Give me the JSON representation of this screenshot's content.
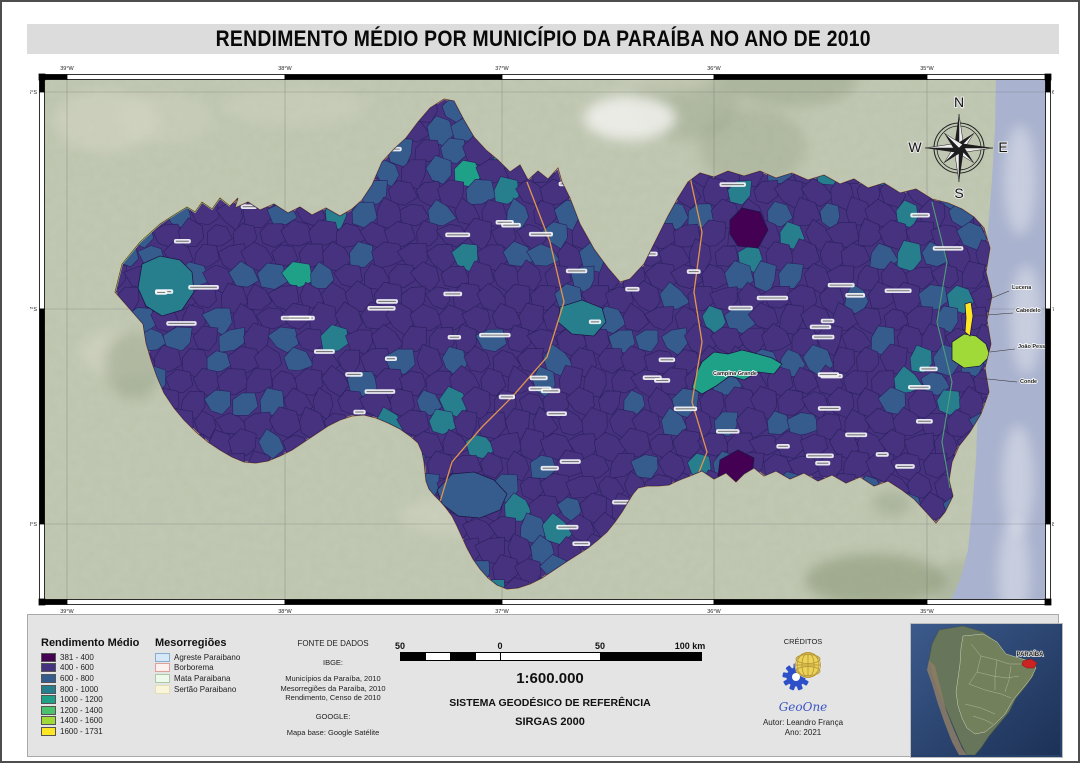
{
  "title": "RENDIMENTO MÉDIO POR MUNICÍPIO DA PARAÍBA NO ANO DE 2010",
  "map": {
    "lon_labels": [
      "39°W",
      "38°W",
      "37°W",
      "36°W",
      "35°W"
    ],
    "lat_labels": [
      "6°S",
      "7°S",
      "8°S"
    ],
    "compass_letters": [
      "N",
      "E",
      "S",
      "W"
    ],
    "place_labels": [
      {
        "id": "lucena",
        "text": "Lucena"
      },
      {
        "id": "cabedelo",
        "text": "Cabedelo"
      },
      {
        "id": "joao-pessoa",
        "text": "João Pessoa"
      },
      {
        "id": "conde",
        "text": "Conde"
      },
      {
        "id": "campina-grande",
        "text": "Campina Grande"
      }
    ]
  },
  "legend": {
    "title": "Rendimento Médio",
    "classes": [
      {
        "label": "381 - 400",
        "color": "#440154"
      },
      {
        "label": "400 - 600",
        "color": "#46327e"
      },
      {
        "label": "600 - 800",
        "color": "#365c8d"
      },
      {
        "label": "800 - 1000",
        "color": "#277f8e"
      },
      {
        "label": "1000 - 1200",
        "color": "#1fa187"
      },
      {
        "label": "1200 - 1400",
        "color": "#4ac16d"
      },
      {
        "label": "1400 - 1600",
        "color": "#a0da39"
      },
      {
        "label": "1600 - 1731",
        "color": "#fde725"
      }
    ],
    "mesoregions_title": "Mesorregiões",
    "mesoregions": [
      {
        "label": "Agreste Paraibano",
        "fill": "#d6e8f7",
        "border": "#86aed2"
      },
      {
        "label": "Borborema",
        "fill": "#fdf0ef",
        "border": "#e0a09a"
      },
      {
        "label": "Mata Paraibana",
        "fill": "#eff8ec",
        "border": "#a8cba4"
      },
      {
        "label": "Sertão Paraibano",
        "fill": "#f8f5da",
        "border": "#e4deb2"
      }
    ]
  },
  "sources": {
    "title": "FONTE DE DADOS",
    "groups": [
      {
        "name": "IBGE:",
        "items": [
          "Municípios da Paraíba, 2010",
          "Mesorregiões da Paraíba, 2010",
          "Rendimento, Censo de 2010"
        ]
      },
      {
        "name": "GOOGLE:",
        "items": [
          "Mapa base: Google Satélite"
        ]
      }
    ]
  },
  "scalebar": {
    "tick_labels": [
      "50",
      "0",
      "50",
      "100 km"
    ],
    "scale_text": "1:600.000"
  },
  "reference": {
    "line1": "SISTEMA GEODÉSICO DE REFERÊNCIA",
    "line2": "SIRGAS 2000"
  },
  "credits": {
    "title": "CRÉDITOS",
    "logo_text": "GeoOne",
    "author": "Autor: Leandro França",
    "year": "Ano: 2021"
  },
  "inset": {
    "label": "PARAÍBA"
  },
  "colors": {
    "meso_line": "#e2954e",
    "state_border": "#d9b367",
    "west_border": "#d6e26a",
    "mata_line": "#4f9e7c",
    "ocean": "#a9b2ce",
    "terrain": "#bcc4ae",
    "muni_border": "#2b2060"
  }
}
